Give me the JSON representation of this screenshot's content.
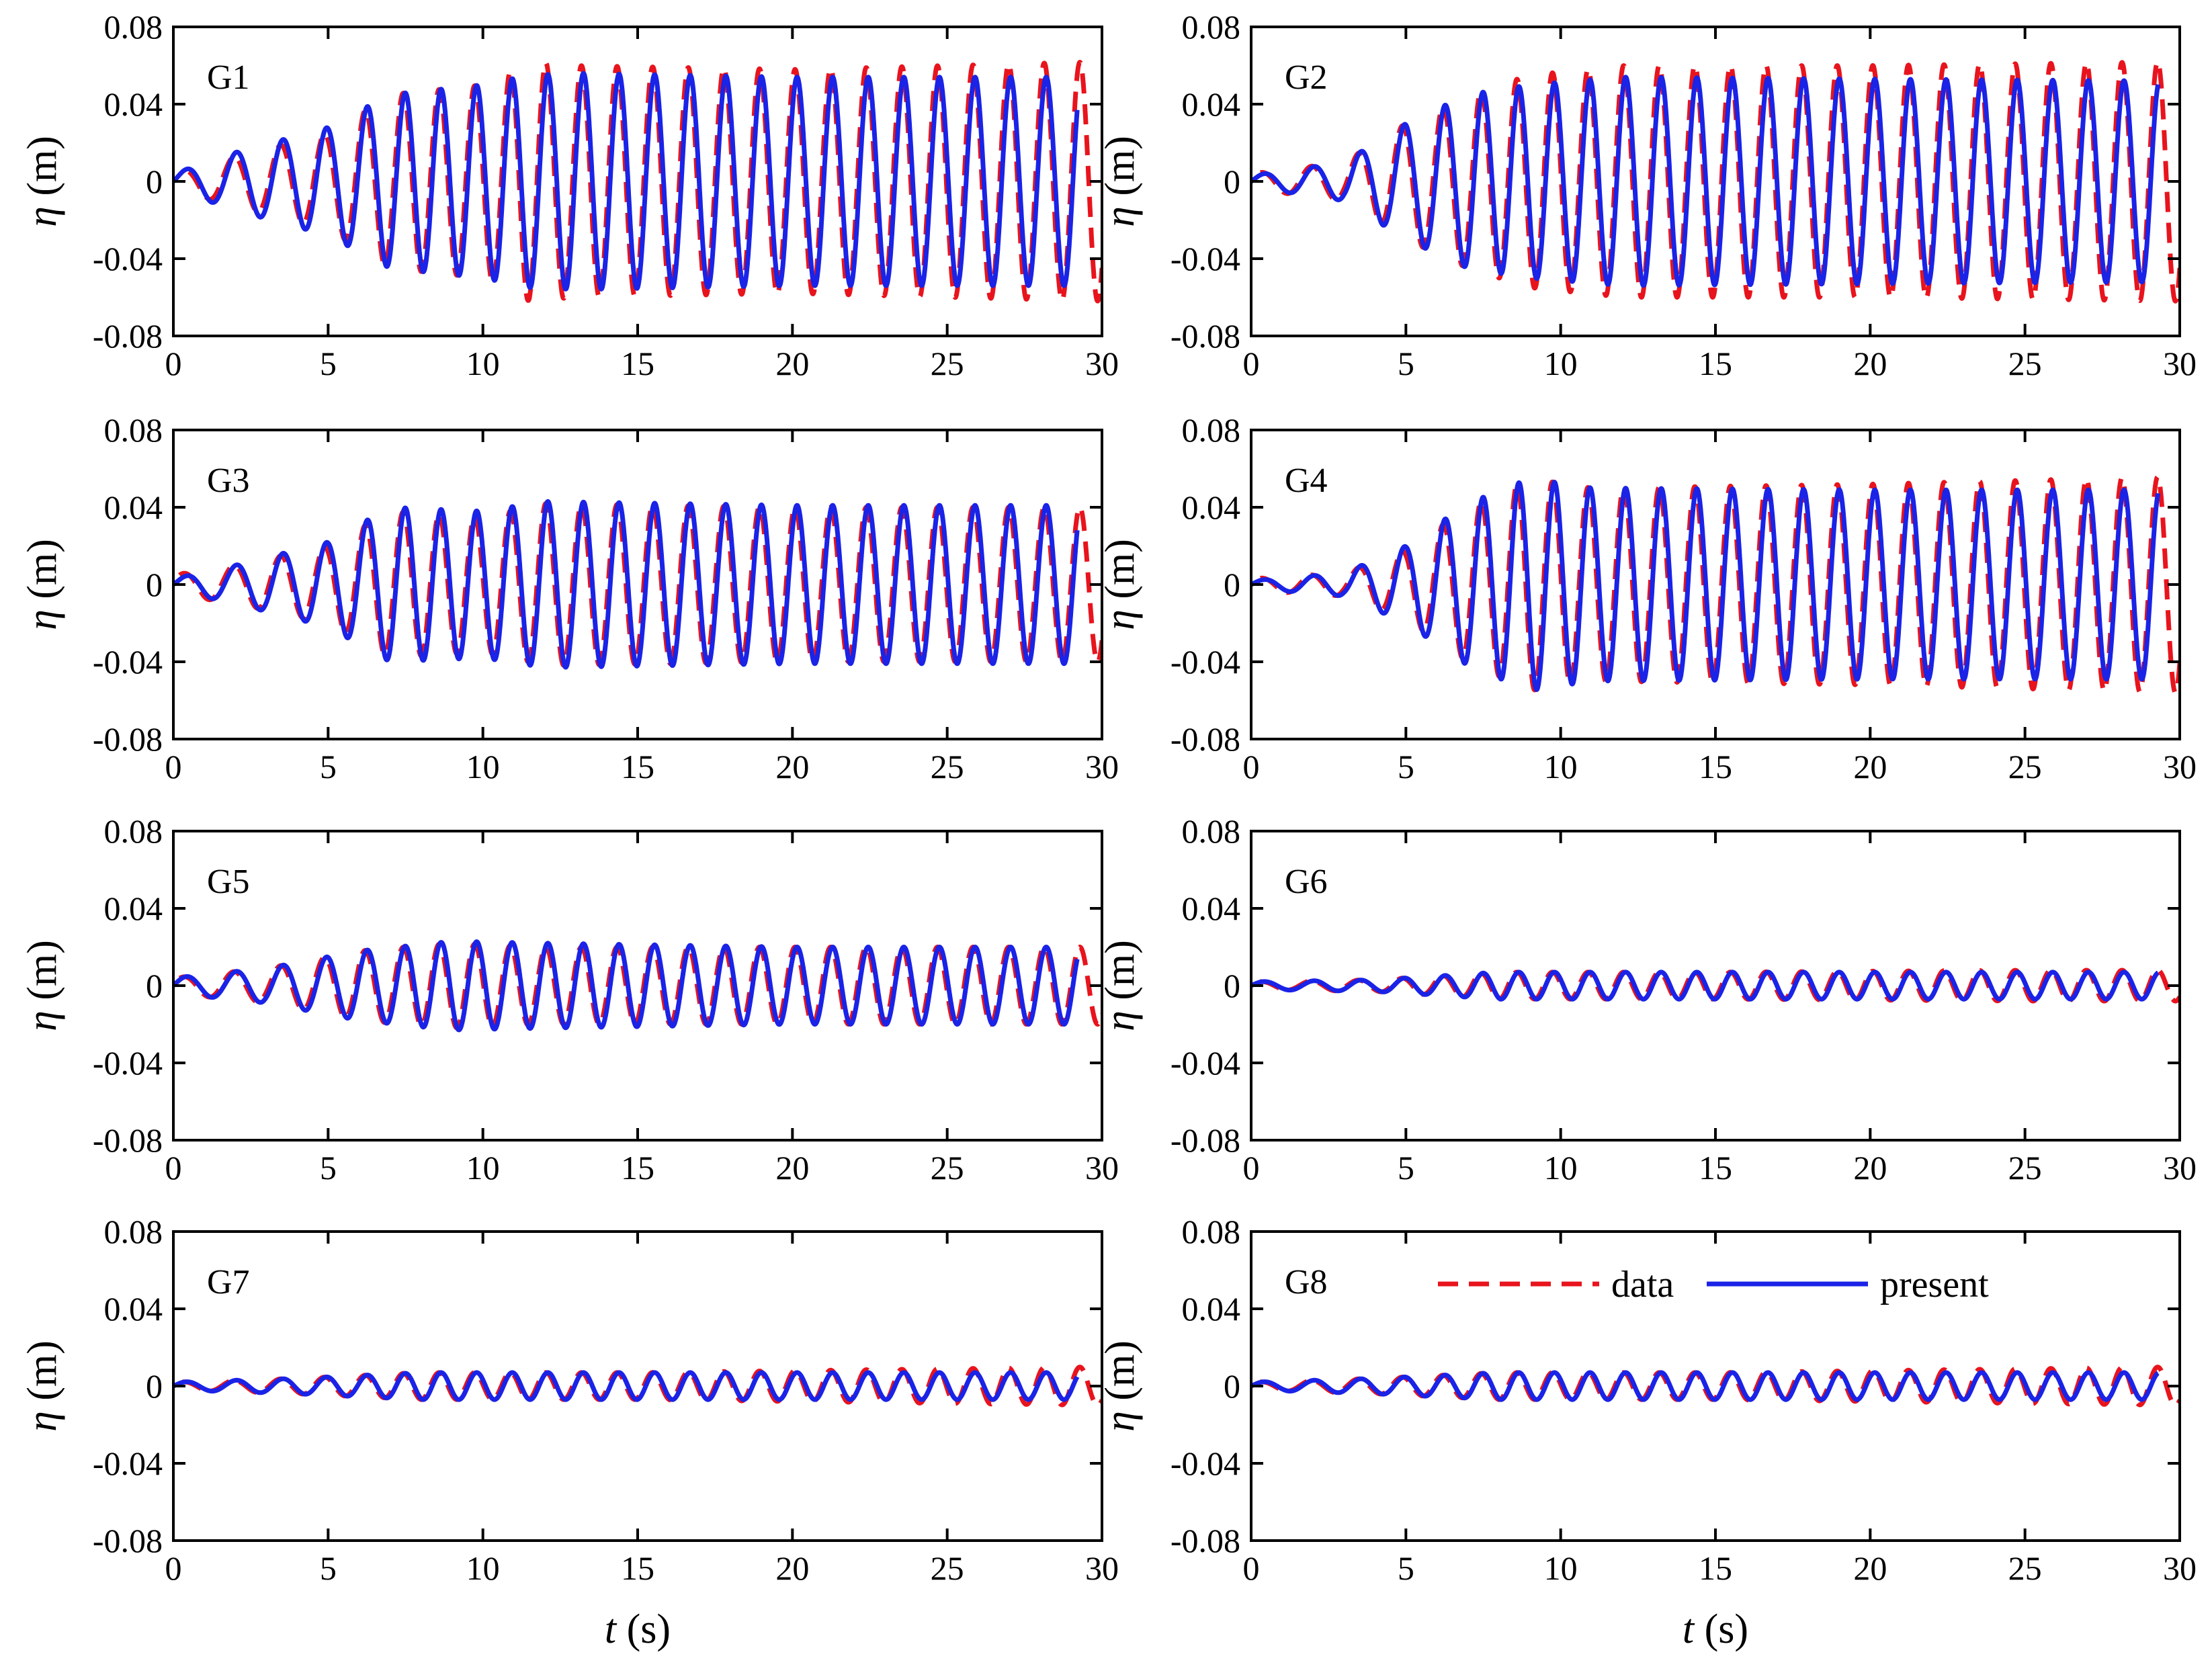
{
  "chart_data": [
    {
      "type": "line",
      "panel": "G1",
      "x_range": [
        0,
        30
      ],
      "ylim": [
        -0.08,
        0.08
      ],
      "x_ticks": [
        "0",
        "5",
        "10",
        "15",
        "20",
        "25",
        "30"
      ],
      "y_ticks": [
        "0.08",
        "0.04",
        "0",
        "-0.04",
        "-0.08"
      ],
      "series": [
        {
          "name": "data",
          "style": "dashed",
          "color": "#e8141d",
          "start": 0.5,
          "end": 30,
          "amp_points": [
            [
              0,
              0.004
            ],
            [
              2,
              0.013
            ],
            [
              5,
              0.025
            ],
            [
              7,
              0.045
            ],
            [
              10,
              0.05
            ],
            [
              11.5,
              0.062
            ],
            [
              13,
              0.06
            ],
            [
              20,
              0.058
            ],
            [
              25,
              0.06
            ],
            [
              30,
              0.062
            ]
          ]
        },
        {
          "name": "present",
          "style": "solid",
          "color": "#1a23e6",
          "start": 0,
          "end": 29.2,
          "amp_points": [
            [
              0,
              0.004
            ],
            [
              2,
              0.015
            ],
            [
              5,
              0.028
            ],
            [
              7,
              0.045
            ],
            [
              10,
              0.05
            ],
            [
              11.5,
              0.055
            ],
            [
              13,
              0.056
            ],
            [
              20,
              0.054
            ],
            [
              25,
              0.054
            ],
            [
              30,
              0.054
            ]
          ]
        }
      ]
    },
    {
      "type": "line",
      "panel": "G2",
      "x_range": [
        0,
        30
      ],
      "ylim": [
        -0.08,
        0.08
      ],
      "x_ticks": [
        "0",
        "5",
        "10",
        "15",
        "20",
        "25",
        "30"
      ],
      "y_ticks": [
        "0.08",
        "0.04",
        "0",
        "-0.04",
        "-0.08"
      ],
      "series": [
        {
          "name": "data",
          "style": "dashed",
          "color": "#e8141d",
          "start": 0.3,
          "end": 30,
          "amp_points": [
            [
              0,
              0.004
            ],
            [
              3,
              0.01
            ],
            [
              5,
              0.03
            ],
            [
              7,
              0.045
            ],
            [
              9,
              0.055
            ],
            [
              12,
              0.06
            ],
            [
              20,
              0.06
            ],
            [
              30,
              0.062
            ]
          ]
        },
        {
          "name": "present",
          "style": "solid",
          "color": "#1a23e6",
          "start": 0,
          "end": 29.3,
          "amp_points": [
            [
              0,
              0.003
            ],
            [
              3,
              0.01
            ],
            [
              5,
              0.03
            ],
            [
              7,
              0.045
            ],
            [
              9,
              0.05
            ],
            [
              12,
              0.054
            ],
            [
              20,
              0.053
            ],
            [
              30,
              0.052
            ]
          ]
        }
      ]
    },
    {
      "type": "line",
      "panel": "G3",
      "x_range": [
        0,
        30
      ],
      "ylim": [
        -0.08,
        0.08
      ],
      "x_ticks": [
        "0",
        "5",
        "10",
        "15",
        "20",
        "25",
        "30"
      ],
      "y_ticks": [
        "0.08",
        "0.04",
        "0",
        "-0.04",
        "-0.08"
      ],
      "series": [
        {
          "name": "data",
          "style": "dashed",
          "color": "#e8141d",
          "start": 0.2,
          "end": 30,
          "amp_points": [
            [
              0,
              0.005
            ],
            [
              2,
              0.01
            ],
            [
              5,
              0.02
            ],
            [
              7,
              0.038
            ],
            [
              10,
              0.035
            ],
            [
              12,
              0.042
            ],
            [
              20,
              0.04
            ],
            [
              30,
              0.04
            ]
          ]
        },
        {
          "name": "present",
          "style": "solid",
          "color": "#1a23e6",
          "start": 0,
          "end": 29.2,
          "amp_points": [
            [
              0,
              0.003
            ],
            [
              2,
              0.01
            ],
            [
              5,
              0.022
            ],
            [
              7,
              0.04
            ],
            [
              10,
              0.038
            ],
            [
              12,
              0.043
            ],
            [
              20,
              0.041
            ],
            [
              30,
              0.041
            ]
          ]
        }
      ]
    },
    {
      "type": "line",
      "panel": "G4",
      "x_range": [
        0,
        30
      ],
      "ylim": [
        -0.08,
        0.08
      ],
      "x_ticks": [
        "0",
        "5",
        "10",
        "15",
        "20",
        "25",
        "30"
      ],
      "y_ticks": [
        "0.08",
        "0.04",
        "0",
        "-0.04",
        "-0.08"
      ],
      "series": [
        {
          "name": "data",
          "style": "dashed",
          "color": "#e8141d",
          "start": 0.3,
          "end": 30,
          "amp_points": [
            [
              0,
              0.003
            ],
            [
              3,
              0.006
            ],
            [
              5,
              0.018
            ],
            [
              7,
              0.04
            ],
            [
              9,
              0.055
            ],
            [
              11,
              0.05
            ],
            [
              20,
              0.052
            ],
            [
              30,
              0.056
            ]
          ]
        },
        {
          "name": "present",
          "style": "solid",
          "color": "#1a23e6",
          "start": 0,
          "end": 29.3,
          "amp_points": [
            [
              0,
              0.002
            ],
            [
              3,
              0.006
            ],
            [
              5,
              0.02
            ],
            [
              7,
              0.042
            ],
            [
              9,
              0.055
            ],
            [
              11,
              0.05
            ],
            [
              20,
              0.049
            ],
            [
              30,
              0.049
            ]
          ]
        }
      ]
    },
    {
      "type": "line",
      "panel": "G5",
      "x_range": [
        0,
        30
      ],
      "ylim": [
        -0.08,
        0.08
      ],
      "x_ticks": [
        "0",
        "5",
        "10",
        "15",
        "20",
        "25",
        "30"
      ],
      "y_ticks": [
        "0.08",
        "0.04",
        "0",
        "-0.04",
        "-0.08"
      ],
      "series": [
        {
          "name": "data",
          "style": "dashed",
          "color": "#e8141d",
          "start": 0.2,
          "end": 30,
          "amp_points": [
            [
              0,
              0.004
            ],
            [
              3,
              0.009
            ],
            [
              6,
              0.018
            ],
            [
              9,
              0.022
            ],
            [
              12,
              0.02
            ],
            [
              20,
              0.02
            ],
            [
              30,
              0.02
            ]
          ]
        },
        {
          "name": "present",
          "style": "solid",
          "color": "#1a23e6",
          "start": 0,
          "end": 29.2,
          "amp_points": [
            [
              0,
              0.004
            ],
            [
              3,
              0.009
            ],
            [
              6,
              0.018
            ],
            [
              9,
              0.023
            ],
            [
              12,
              0.022
            ],
            [
              20,
              0.02
            ],
            [
              30,
              0.02
            ]
          ]
        }
      ]
    },
    {
      "type": "line",
      "panel": "G6",
      "x_range": [
        0,
        30
      ],
      "ylim": [
        -0.08,
        0.08
      ],
      "x_ticks": [
        "0",
        "5",
        "10",
        "15",
        "20",
        "25",
        "30"
      ],
      "y_ticks": [
        "0.08",
        "0.04",
        "0",
        "-0.04",
        "-0.08"
      ],
      "series": [
        {
          "name": "data",
          "style": "dashed",
          "color": "#e8141d",
          "start": 0.3,
          "end": 30,
          "amp_points": [
            [
              0,
              0.002
            ],
            [
              4,
              0.003
            ],
            [
              8,
              0.007
            ],
            [
              15,
              0.007
            ],
            [
              25,
              0.008
            ],
            [
              30,
              0.008
            ]
          ]
        },
        {
          "name": "present",
          "style": "solid",
          "color": "#1a23e6",
          "start": 0,
          "end": 29.3,
          "amp_points": [
            [
              0,
              0.002
            ],
            [
              4,
              0.003
            ],
            [
              8,
              0.007
            ],
            [
              15,
              0.007
            ],
            [
              25,
              0.007
            ],
            [
              30,
              0.007
            ]
          ]
        }
      ]
    },
    {
      "type": "line",
      "panel": "G7",
      "x_range": [
        0,
        30
      ],
      "ylim": [
        -0.08,
        0.08
      ],
      "x_ticks": [
        "0",
        "5",
        "10",
        "15",
        "20",
        "25",
        "30"
      ],
      "y_ticks": [
        "0.08",
        "0.04",
        "0",
        "-0.04",
        "-0.08"
      ],
      "series": [
        {
          "name": "data",
          "style": "dashed",
          "color": "#e8141d",
          "start": 0.3,
          "end": 30,
          "amp_points": [
            [
              0,
              0.002
            ],
            [
              4,
              0.004
            ],
            [
              8,
              0.007
            ],
            [
              15,
              0.007
            ],
            [
              25,
              0.009
            ],
            [
              30,
              0.01
            ]
          ]
        },
        {
          "name": "present",
          "style": "solid",
          "color": "#1a23e6",
          "start": 0,
          "end": 29.2,
          "amp_points": [
            [
              0,
              0.002
            ],
            [
              4,
              0.004
            ],
            [
              8,
              0.007
            ],
            [
              15,
              0.007
            ],
            [
              25,
              0.007
            ],
            [
              30,
              0.007
            ]
          ]
        }
      ]
    },
    {
      "type": "line",
      "panel": "G8",
      "x_range": [
        0,
        30
      ],
      "ylim": [
        -0.08,
        0.08
      ],
      "x_ticks": [
        "0",
        "5",
        "10",
        "15",
        "20",
        "25",
        "30"
      ],
      "y_ticks": [
        "0.08",
        "0.04",
        "0",
        "-0.04",
        "-0.08"
      ],
      "series": [
        {
          "name": "data",
          "style": "dashed",
          "color": "#e8141d",
          "start": 0.3,
          "end": 30,
          "amp_points": [
            [
              0,
              0.002
            ],
            [
              4,
              0.004
            ],
            [
              8,
              0.007
            ],
            [
              15,
              0.007
            ],
            [
              25,
              0.009
            ],
            [
              30,
              0.01
            ]
          ]
        },
        {
          "name": "present",
          "style": "solid",
          "color": "#1a23e6",
          "start": 0,
          "end": 29.3,
          "amp_points": [
            [
              0,
              0.002
            ],
            [
              4,
              0.004
            ],
            [
              8,
              0.007
            ],
            [
              15,
              0.007
            ],
            [
              25,
              0.007
            ],
            [
              30,
              0.007
            ]
          ]
        }
      ]
    }
  ],
  "ylabel_symbol": "η",
  "ylabel_unit": " (m)",
  "xlabel_symbol": "t",
  "xlabel_unit": " (s)",
  "legend": [
    {
      "name": "data",
      "style": "dashed",
      "color": "#e8141d"
    },
    {
      "name": "present",
      "style": "solid",
      "color": "#1a23e6"
    }
  ],
  "legend_panel": "G8",
  "legend_position": "top-center"
}
